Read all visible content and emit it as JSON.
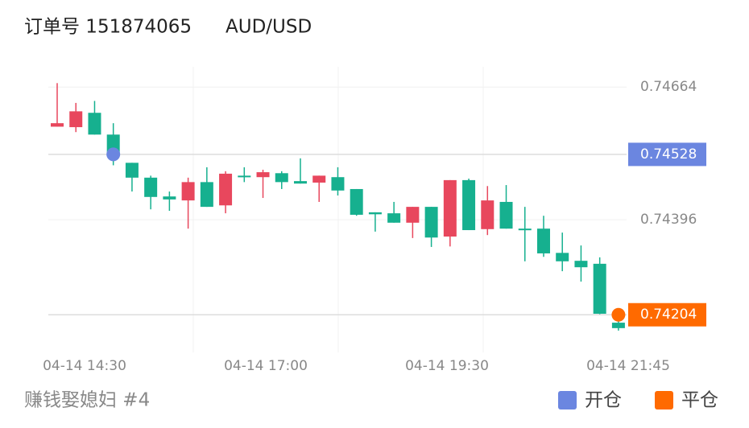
{
  "header": {
    "order_label": "订单号 151874065",
    "symbol": "AUD/USD"
  },
  "chart_data": {
    "type": "candlestick",
    "x_labels": [
      "04-14 14:30",
      "04-14 17:00",
      "04-14 19:30",
      "04-14 21:45"
    ],
    "open": [
      0.74584,
      0.74583,
      0.74612,
      0.74568,
      0.74511,
      0.74481,
      0.74443,
      0.74435,
      0.74472,
      0.74425,
      0.74485,
      0.74482,
      0.7449,
      0.74474,
      0.74471,
      0.74482,
      0.74458,
      0.74411,
      0.74409,
      0.7439,
      0.74422,
      0.74362,
      0.74476,
      0.74377,
      0.74432,
      0.74378,
      0.74378,
      0.74329,
      0.74313,
      0.74307,
      0.74188
    ],
    "high": [
      0.74672,
      0.74632,
      0.74636,
      0.74591,
      0.74511,
      0.74485,
      0.74453,
      0.74481,
      0.74502,
      0.74494,
      0.74502,
      0.74497,
      0.74494,
      0.7452,
      0.74485,
      0.74502,
      0.74458,
      0.74411,
      0.74432,
      0.74422,
      0.74422,
      0.74476,
      0.74479,
      0.74464,
      0.74466,
      0.74422,
      0.74404,
      0.7437,
      0.74344,
      0.7432,
      0.74196
    ],
    "low": [
      0.74584,
      0.74573,
      0.74568,
      0.74506,
      0.74453,
      0.74417,
      0.74414,
      0.74378,
      0.74422,
      0.74409,
      0.74472,
      0.7444,
      0.74458,
      0.74469,
      0.74432,
      0.74445,
      0.74404,
      0.74372,
      0.7439,
      0.74359,
      0.74341,
      0.74342,
      0.74375,
      0.74365,
      0.74378,
      0.74312,
      0.74321,
      0.74292,
      0.74271,
      0.74203,
      0.74172
    ],
    "close": [
      0.74591,
      0.74615,
      0.74568,
      0.74526,
      0.74481,
      0.74442,
      0.74437,
      0.74472,
      0.74422,
      0.74489,
      0.74482,
      0.74492,
      0.74472,
      0.74469,
      0.74485,
      0.74455,
      0.74406,
      0.74407,
      0.7439,
      0.74422,
      0.7436,
      0.74476,
      0.74375,
      0.74435,
      0.74378,
      0.74375,
      0.74328,
      0.74312,
      0.743,
      0.74206,
      0.74177
    ],
    "up_color": "#e8475d",
    "down_color": "#16b08f",
    "ylim": [
      0.74128,
      0.74705
    ],
    "yticks": [
      0.74664,
      0.74396
    ],
    "open_price": 0.74528,
    "close_price": 0.74204,
    "open_color": "#6b86e0",
    "close_color": "#ff6a00",
    "legend": [
      "开仓",
      "平仓"
    ]
  },
  "footer": {
    "account": "赚钱娶媳妇 #4"
  }
}
